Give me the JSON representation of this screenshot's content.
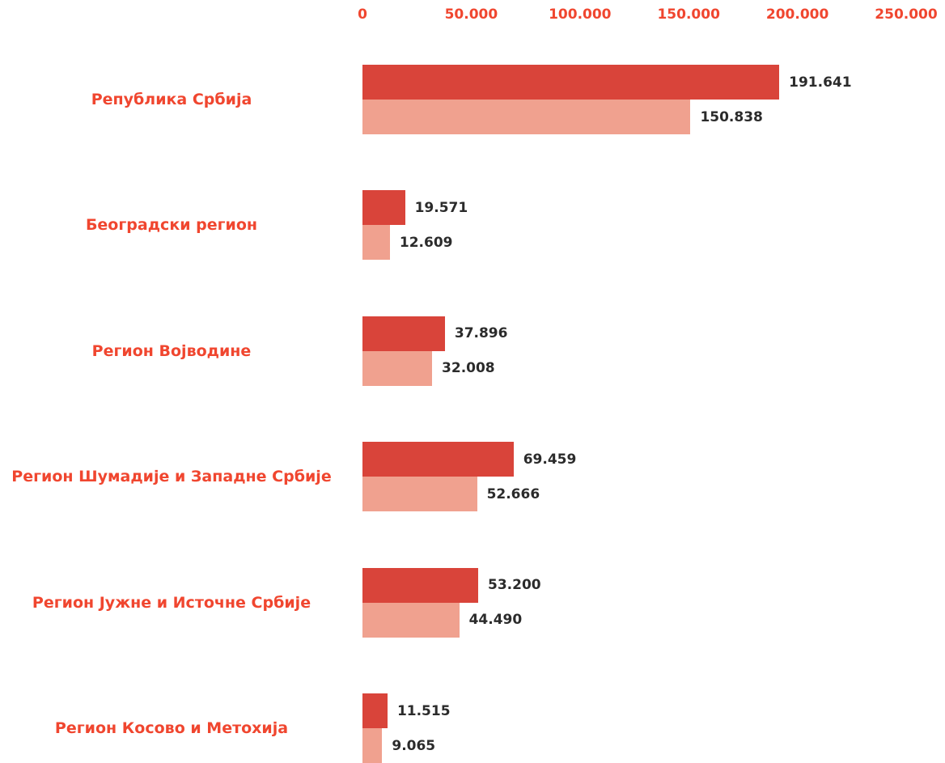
{
  "chart_data": {
    "type": "bar",
    "orientation": "horizontal",
    "categories": [
      "Република Србија",
      "Београдски регион",
      "Регион Војводине",
      "Регион Шумадије и Западне Србије",
      "Регион Јужне и Источне Србије",
      "Регион Косово и Метохија"
    ],
    "series": [
      {
        "color": "#d9443a",
        "values": [
          191641,
          19571,
          37896,
          69459,
          53200,
          11515
        ],
        "value_labels": [
          "191.641",
          "19.571",
          "37.896",
          "69.459",
          "53.200",
          "11.515"
        ]
      },
      {
        "color": "#f0a18f",
        "values": [
          150838,
          12609,
          32008,
          52666,
          44490,
          9065
        ],
        "value_labels": [
          "150.838",
          "12.609",
          "32.008",
          "52.666",
          "44.490",
          "9.065"
        ]
      }
    ],
    "xlim": [
      0,
      250000
    ],
    "xticks": [
      0,
      {
        "value": 50000,
        "label": "50.000"
      },
      {
        "value": 100000,
        "label": "100.000"
      },
      {
        "value": 150000,
        "label": "150.000"
      },
      {
        "value": 200000,
        "label": "200.000"
      },
      {
        "value": 250000,
        "label": "250.000"
      }
    ],
    "grid": false
  }
}
